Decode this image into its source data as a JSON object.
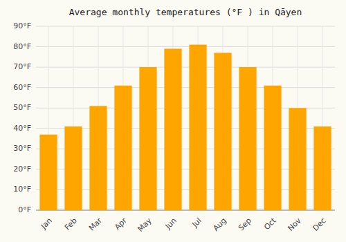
{
  "chart_data": {
    "type": "bar",
    "title": "Average monthly temperatures (°F ) in Qāyen",
    "categories": [
      "Jan",
      "Feb",
      "Mar",
      "Apr",
      "May",
      "Jun",
      "Jul",
      "Aug",
      "Sep",
      "Oct",
      "Nov",
      "Dec"
    ],
    "values": [
      37,
      41,
      51,
      61,
      70,
      79,
      81,
      77,
      70,
      61,
      50,
      41
    ],
    "color": "#FFA500",
    "ylim": [
      0,
      90
    ],
    "yticks": [
      {
        "value": 0,
        "label": "0°F"
      },
      {
        "value": 10,
        "label": "10°F"
      },
      {
        "value": 20,
        "label": "20°F"
      },
      {
        "value": 30,
        "label": "30°F"
      },
      {
        "value": 40,
        "label": "40°F"
      },
      {
        "value": 50,
        "label": "50°F"
      },
      {
        "value": 60,
        "label": "60°F"
      },
      {
        "value": 70,
        "label": "70°F"
      },
      {
        "value": 80,
        "label": "80°F"
      },
      {
        "value": 90,
        "label": "90°F"
      }
    ],
    "grid": true
  }
}
